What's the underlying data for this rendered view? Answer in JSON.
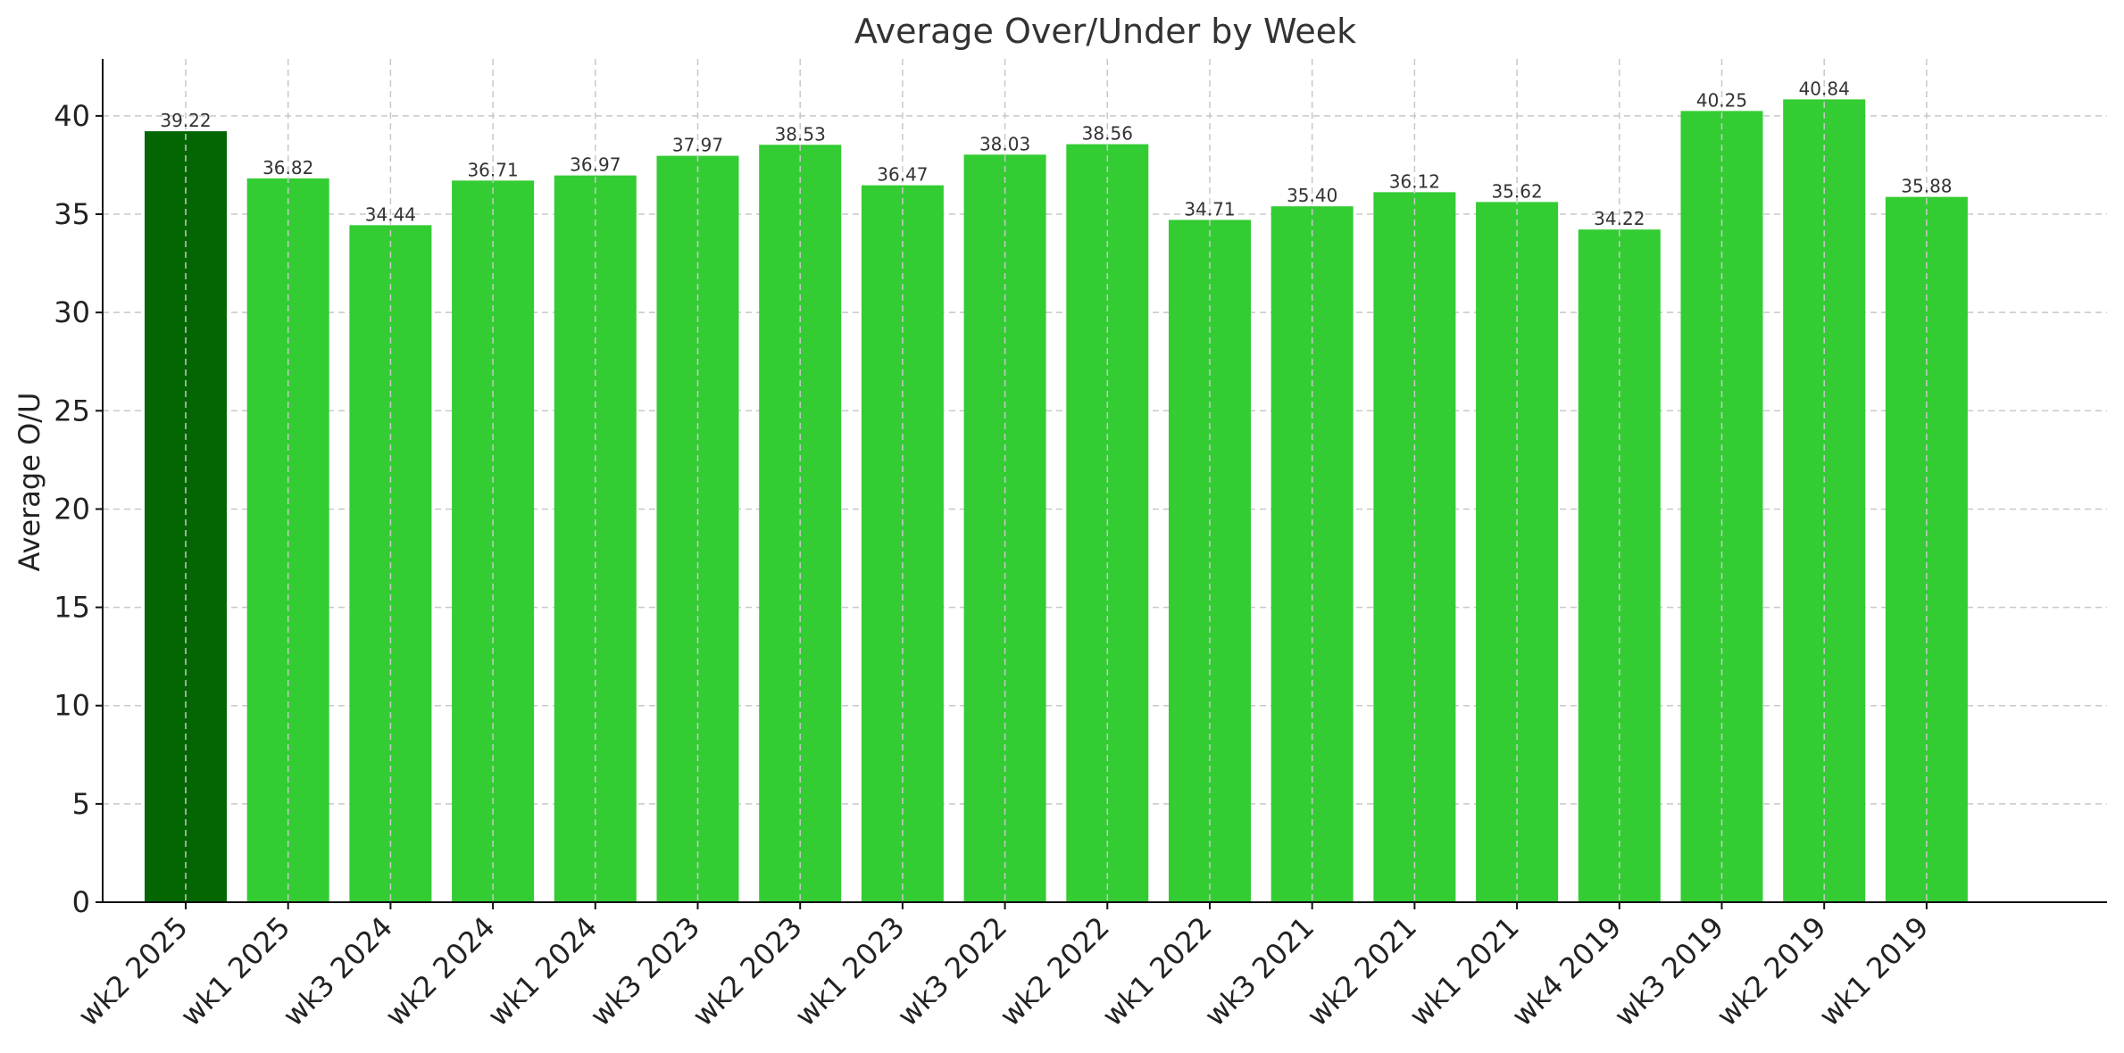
{
  "chart_data": {
    "type": "bar",
    "title": "Average Over/Under by Week",
    "xlabel": "",
    "ylabel": "Average O/U",
    "ylim": [
      0,
      42.9
    ],
    "yticks": [
      0,
      5,
      10,
      15,
      20,
      25,
      30,
      35,
      40
    ],
    "grid": true,
    "categories": [
      "wk2 2025",
      "wk1 2025",
      "wk3 2024",
      "wk2 2024",
      "wk1 2024",
      "wk3 2023",
      "wk2 2023",
      "wk1 2023",
      "wk3 2022",
      "wk2 2022",
      "wk1 2022",
      "wk3 2021",
      "wk2 2021",
      "wk1 2021",
      "wk4 2019",
      "wk3 2019",
      "wk2 2019",
      "wk1 2019"
    ],
    "values": [
      39.22,
      36.82,
      34.44,
      36.71,
      36.97,
      37.97,
      38.53,
      36.47,
      38.03,
      38.56,
      34.71,
      35.4,
      36.12,
      35.62,
      34.22,
      40.25,
      40.84,
      35.88
    ],
    "data_labels": [
      "39.22",
      "36.82",
      "34.44",
      "36.71",
      "36.97",
      "37.97",
      "38.53",
      "36.47",
      "38.03",
      "38.56",
      "34.71",
      "35.40",
      "36.12",
      "35.62",
      "34.22",
      "40.25",
      "40.84",
      "35.88"
    ],
    "colors": {
      "highlight": "#036603",
      "default": "#33cc33"
    },
    "highlight_index": 0
  }
}
